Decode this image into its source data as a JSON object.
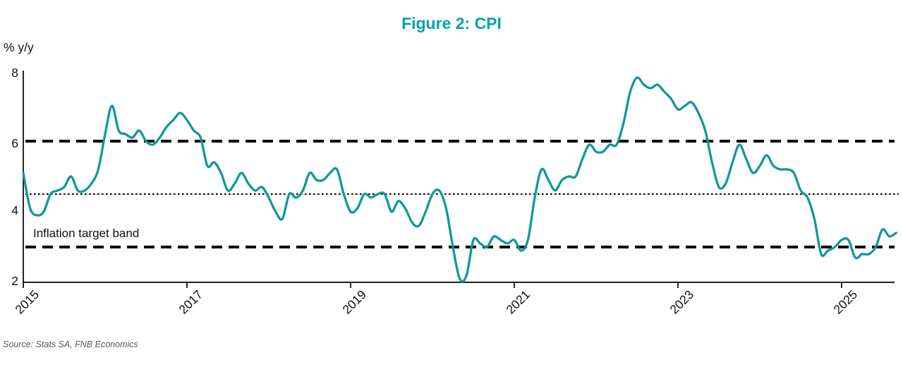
{
  "title": "Figure 2: CPI",
  "y_axis": {
    "unit": "% y/y",
    "ticks": [
      "8",
      "6",
      "4",
      "2"
    ]
  },
  "x_axis": {
    "ticks": [
      "2015",
      "2017",
      "2019",
      "2021",
      "2023",
      "2025"
    ]
  },
  "annotation": "Inflation target band",
  "source": "Source: Stats SA, FNB Economics",
  "colors": {
    "title": "#00a3ac",
    "line": "#10989a",
    "axis": "#000000",
    "reference": "#000000",
    "source_text": "#58595b"
  },
  "chart_data": {
    "type": "line",
    "title": "Figure 2: CPI",
    "ylabel": "% y/y",
    "ylim": [
      2,
      8
    ],
    "yticks": [
      2,
      4,
      6,
      8
    ],
    "xticks": [
      2015,
      2017,
      2019,
      2021,
      2023,
      2025
    ],
    "x_start": "2015-01",
    "x_end": "2025-09",
    "freq": "monthly",
    "grid": false,
    "legend": "none",
    "reference_lines": [
      {
        "label": "Inflation target band upper (6%)",
        "value": 6,
        "style": "dashed"
      },
      {
        "label": "Inflation target midpoint (4.5%)",
        "value": 4.5,
        "style": "dotted"
      },
      {
        "label": "Inflation target band lower (3%)",
        "value": 3,
        "style": "dashed"
      }
    ],
    "series": [
      {
        "name": "CPI % y/y",
        "values": [
          5.1,
          4.1,
          3.9,
          4.0,
          4.5,
          4.6,
          4.7,
          5.0,
          4.6,
          4.6,
          4.8,
          5.2,
          6.2,
          7.0,
          6.3,
          6.2,
          6.1,
          6.3,
          6.0,
          5.9,
          6.1,
          6.4,
          6.6,
          6.8,
          6.6,
          6.3,
          6.1,
          5.3,
          5.4,
          5.1,
          4.6,
          4.8,
          5.1,
          4.8,
          4.6,
          4.7,
          4.4,
          4.0,
          3.8,
          4.5,
          4.4,
          4.6,
          5.1,
          4.9,
          4.9,
          5.1,
          5.2,
          4.5,
          4.0,
          4.1,
          4.5,
          4.4,
          4.5,
          4.5,
          4.0,
          4.3,
          4.1,
          3.7,
          3.6,
          4.0,
          4.5,
          4.6,
          4.1,
          3.0,
          2.1,
          2.2,
          3.2,
          3.1,
          3.0,
          3.3,
          3.2,
          3.1,
          3.2,
          2.9,
          3.2,
          4.4,
          5.2,
          4.9,
          4.6,
          4.9,
          5.0,
          5.0,
          5.5,
          5.9,
          5.7,
          5.7,
          5.9,
          5.9,
          6.5,
          7.4,
          7.8,
          7.6,
          7.5,
          7.6,
          7.4,
          7.2,
          6.9,
          7.0,
          7.1,
          6.8,
          6.3,
          5.4,
          4.7,
          4.8,
          5.4,
          5.9,
          5.5,
          5.1,
          5.3,
          5.6,
          5.3,
          5.2,
          5.2,
          5.1,
          4.6,
          4.4,
          3.8,
          2.8,
          2.9,
          3.0,
          3.2,
          3.2,
          2.7,
          2.8,
          2.8,
          3.0,
          3.5,
          3.3,
          3.4
        ]
      }
    ]
  }
}
